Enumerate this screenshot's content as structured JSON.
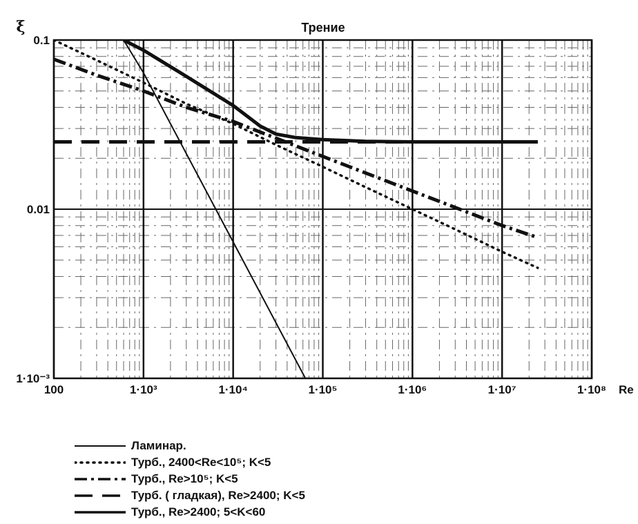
{
  "chart_data": {
    "type": "line",
    "title": "Трение",
    "ylabel": "ξ",
    "xlabel": "Re",
    "xscale": "log",
    "yscale": "log",
    "xlim": [
      100,
      100000000
    ],
    "ylim": [
      0.001,
      0.1
    ],
    "grid": true,
    "legend_position": "bottom-left",
    "x_ticks": [
      "100",
      "1·10³",
      "1·10⁴",
      "1·10⁵",
      "1·10⁶",
      "1·10⁷",
      "1·10⁸"
    ],
    "y_ticks": [
      "0.1",
      "0.01",
      "1·10⁻³"
    ],
    "series": [
      {
        "name": "Ламинар.",
        "style": "solid-thin",
        "color": "#111111",
        "x": [
          600,
          1000,
          10000,
          64000
        ],
        "y": [
          0.1,
          0.064,
          0.0064,
          0.001
        ]
      },
      {
        "name": "Турб., 2400<Re<10⁵; K<5",
        "style": "dotted",
        "color": "#111111",
        "x": [
          100,
          300,
          1000,
          3000,
          10000,
          30000,
          100000,
          300000,
          1000000,
          3000000,
          10000000,
          25000000
        ],
        "y": [
          0.1,
          0.076,
          0.056,
          0.042,
          0.032,
          0.024,
          0.0178,
          0.0135,
          0.01,
          0.0076,
          0.0056,
          0.0045
        ]
      },
      {
        "name": "Турб., Re>10⁵; K<5",
        "style": "dash-dot-thick",
        "color": "#111111",
        "x": [
          100,
          300,
          1000,
          3000,
          10000,
          100000,
          1000000,
          10000000,
          25000000
        ],
        "y": [
          0.077,
          0.062,
          0.05,
          0.04,
          0.033,
          0.0205,
          0.0128,
          0.008,
          0.0068
        ]
      },
      {
        "name": "Турб. ( гладкая),   Re>2400; K<5",
        "style": "dashed-thick",
        "color": "#111111",
        "x": [
          100,
          25000000
        ],
        "y": [
          0.025,
          0.025
        ]
      },
      {
        "name": "Турб., Re>2400; 5<K<60",
        "style": "solid-thick",
        "color": "#111111",
        "x": [
          600,
          1000,
          3000,
          10000,
          20000,
          30000,
          50000,
          100000,
          300000,
          1000000,
          10000000,
          25000000
        ],
        "y": [
          0.1,
          0.087,
          0.061,
          0.041,
          0.031,
          0.0278,
          0.0265,
          0.0258,
          0.0252,
          0.025,
          0.025,
          0.025
        ]
      }
    ]
  }
}
